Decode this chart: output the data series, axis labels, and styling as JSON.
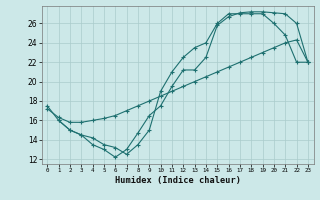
{
  "xlabel": "Humidex (Indice chaleur)",
  "xlim": [
    -0.5,
    23.5
  ],
  "ylim": [
    11.5,
    27.8
  ],
  "xticks": [
    0,
    1,
    2,
    3,
    4,
    5,
    6,
    7,
    8,
    9,
    10,
    11,
    12,
    13,
    14,
    15,
    16,
    17,
    18,
    19,
    20,
    21,
    22,
    23
  ],
  "yticks": [
    12,
    14,
    16,
    18,
    20,
    22,
    24,
    26
  ],
  "bg_color": "#cce8e8",
  "grid_color": "#aacccc",
  "line_color": "#1e7070",
  "line1_x": [
    0,
    1,
    2,
    3,
    4,
    5,
    6,
    7,
    8,
    9,
    10,
    11,
    12,
    13,
    14,
    15,
    16,
    17,
    18,
    19,
    20,
    21,
    22,
    23
  ],
  "line1_y": [
    17.5,
    16.0,
    15.0,
    14.5,
    13.5,
    13.0,
    12.2,
    13.0,
    14.7,
    16.5,
    17.5,
    19.5,
    21.2,
    21.2,
    22.5,
    25.8,
    26.7,
    27.1,
    27.2,
    27.2,
    27.1,
    27.0,
    26.0,
    22.0
  ],
  "line2_x": [
    1,
    2,
    3,
    4,
    5,
    6,
    7,
    8,
    9,
    10,
    11,
    12,
    13,
    14,
    15,
    16,
    17,
    18,
    19,
    20,
    21,
    22,
    23
  ],
  "line2_y": [
    16.0,
    15.0,
    14.5,
    14.2,
    13.5,
    13.2,
    12.5,
    13.5,
    15.0,
    19.0,
    21.0,
    22.5,
    23.5,
    24.0,
    26.0,
    27.0,
    27.0,
    27.0,
    27.0,
    26.0,
    24.8,
    22.0,
    22.0
  ],
  "line3_x": [
    0,
    1,
    2,
    3,
    4,
    5,
    6,
    7,
    8,
    9,
    10,
    11,
    12,
    13,
    14,
    15,
    16,
    17,
    18,
    19,
    20,
    21,
    22,
    23
  ],
  "line3_y": [
    17.2,
    16.3,
    15.8,
    15.8,
    16.0,
    16.2,
    16.5,
    17.0,
    17.5,
    18.0,
    18.5,
    19.0,
    19.5,
    20.0,
    20.5,
    21.0,
    21.5,
    22.0,
    22.5,
    23.0,
    23.5,
    24.0,
    24.3,
    22.0
  ]
}
